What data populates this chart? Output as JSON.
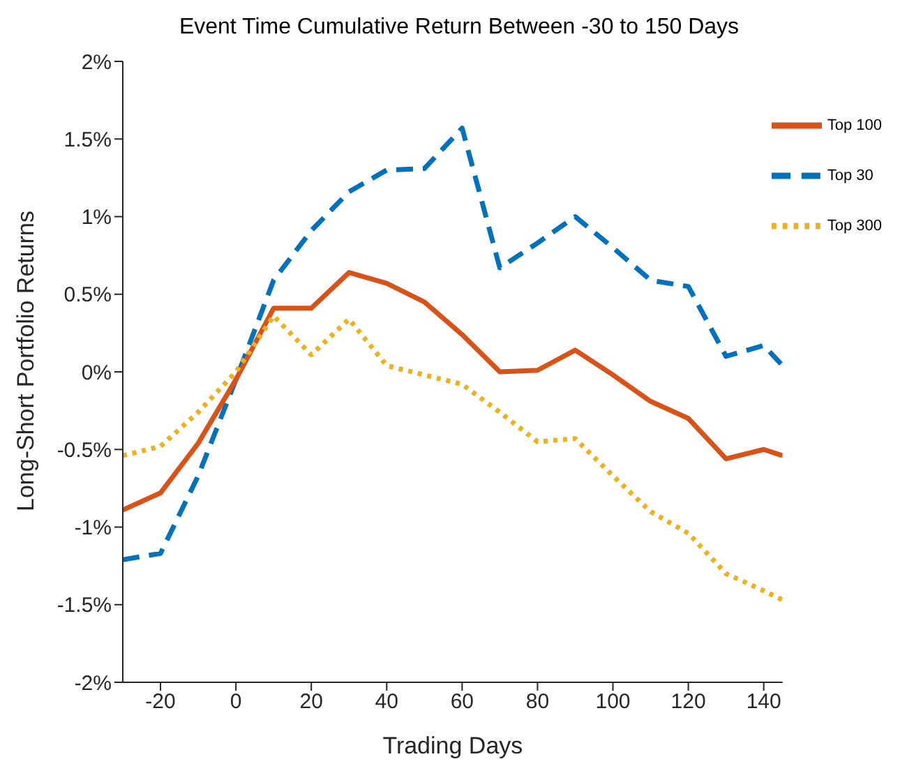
{
  "chart_data": {
    "type": "line",
    "title": "Event Time Cumulative Return Between -30 to 150 Days",
    "xlabel": "Trading Days",
    "ylabel": "Long-Short Portfolio Returns",
    "x": [
      -30,
      -20,
      -10,
      0,
      10,
      20,
      30,
      40,
      50,
      60,
      70,
      80,
      90,
      100,
      110,
      120,
      130,
      140,
      145
    ],
    "series": [
      {
        "name": "Top 30",
        "color": "#0072bd",
        "line_style": "dashed",
        "values": [
          -1.21,
          -1.17,
          -0.67,
          -0.05,
          0.59,
          0.91,
          1.16,
          1.3,
          1.31,
          1.57,
          0.67,
          0.83,
          1.0,
          0.8,
          0.59,
          0.55,
          0.1,
          0.17,
          0.04
        ]
      },
      {
        "name": "Top 100",
        "color": "#d95319",
        "line_style": "solid",
        "values": [
          -0.89,
          -0.78,
          -0.46,
          -0.05,
          0.41,
          0.41,
          0.64,
          0.57,
          0.45,
          0.24,
          0.0,
          0.01,
          0.14,
          -0.02,
          -0.19,
          -0.3,
          -0.56,
          -0.5,
          -0.54
        ]
      },
      {
        "name": "Top 300",
        "color": "#edb120",
        "line_style": "dotted",
        "values": [
          -0.54,
          -0.48,
          -0.26,
          0.0,
          0.36,
          0.11,
          0.34,
          0.04,
          -0.02,
          -0.08,
          -0.26,
          -0.45,
          -0.43,
          -0.67,
          -0.9,
          -1.04,
          -1.3,
          -1.41,
          -1.47
        ]
      }
    ],
    "xlim": [
      -30,
      145
    ],
    "xticks": [
      -20,
      0,
      20,
      40,
      60,
      80,
      100,
      120,
      140
    ],
    "ylim": [
      -2,
      2
    ],
    "yticks": [
      {
        "value": -2,
        "label": "-2%"
      },
      {
        "value": -1.5,
        "label": "-1.5%"
      },
      {
        "value": -1,
        "label": "-1%"
      },
      {
        "value": -0.5,
        "label": "-0.5%"
      },
      {
        "value": 0,
        "label": "0%"
      },
      {
        "value": 0.5,
        "label": "0.5%"
      },
      {
        "value": 1,
        "label": "1%"
      },
      {
        "value": 1.5,
        "label": "1.5%"
      },
      {
        "value": 2,
        "label": "2%"
      }
    ],
    "grid": false,
    "legend": "top right",
    "marker": "none"
  }
}
